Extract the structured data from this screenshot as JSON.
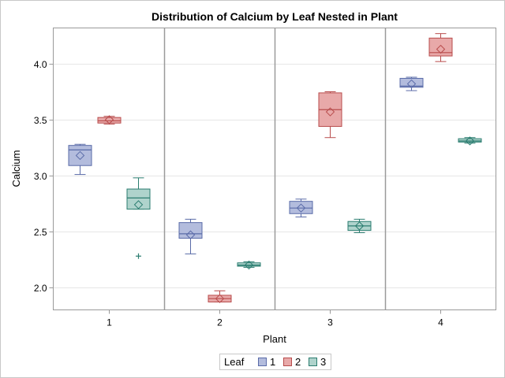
{
  "chart_data": {
    "type": "box",
    "title": "Distribution of Calcium by Leaf Nested in Plant",
    "xlabel": "Plant",
    "ylabel": "Calcium",
    "ylim": [
      1.8,
      4.32
    ],
    "yticks": [
      "2.0",
      "2.5",
      "3.0",
      "3.5",
      "4.0"
    ],
    "ytick_values": [
      2.0,
      2.5,
      3.0,
      3.5,
      4.0
    ],
    "categories": [
      "1",
      "2",
      "3",
      "4"
    ],
    "grid": true,
    "legend": {
      "title": "Leaf",
      "placement": "bottom-center",
      "entries": [
        "1",
        "2",
        "3"
      ]
    },
    "series": [
      {
        "name": "1",
        "fill": "#B3BCDD",
        "stroke": "#5A6BA8",
        "boxes": [
          {
            "plant": "1",
            "whisker_low": 3.01,
            "q1": 3.09,
            "median": 3.23,
            "q3": 3.27,
            "whisker_high": 3.28,
            "mean": 3.18,
            "outliers": []
          },
          {
            "plant": "2",
            "whisker_low": 2.3,
            "q1": 2.44,
            "median": 2.48,
            "q3": 2.58,
            "whisker_high": 2.61,
            "mean": 2.47,
            "outliers": []
          },
          {
            "plant": "3",
            "whisker_low": 2.63,
            "q1": 2.66,
            "median": 2.71,
            "q3": 2.77,
            "whisker_high": 2.79,
            "mean": 2.71,
            "outliers": []
          },
          {
            "plant": "4",
            "whisker_low": 3.76,
            "q1": 3.79,
            "median": 3.8,
            "q3": 3.87,
            "whisker_high": 3.88,
            "mean": 3.82,
            "outliers": []
          }
        ]
      },
      {
        "name": "2",
        "fill": "#E8A9A9",
        "stroke": "#B84C4C",
        "boxes": [
          {
            "plant": "1",
            "whisker_low": 3.46,
            "q1": 3.47,
            "median": 3.49,
            "q3": 3.52,
            "whisker_high": 3.53,
            "mean": 3.5,
            "outliers": []
          },
          {
            "plant": "2",
            "whisker_low": 1.87,
            "q1": 1.87,
            "median": 1.9,
            "q3": 1.93,
            "whisker_high": 1.97,
            "mean": 1.9,
            "outliers": []
          },
          {
            "plant": "3",
            "whisker_low": 3.34,
            "q1": 3.44,
            "median": 3.59,
            "q3": 3.74,
            "whisker_high": 3.75,
            "mean": 3.57,
            "outliers": []
          },
          {
            "plant": "4",
            "whisker_low": 4.02,
            "q1": 4.07,
            "median": 4.1,
            "q3": 4.23,
            "whisker_high": 4.27,
            "mean": 4.13,
            "outliers": []
          }
        ]
      },
      {
        "name": "3",
        "fill": "#AFD3CC",
        "stroke": "#2B7D70",
        "boxes": [
          {
            "plant": "1",
            "whisker_low": 2.7,
            "q1": 2.7,
            "median": 2.8,
            "q3": 2.88,
            "whisker_high": 2.98,
            "mean": 2.74,
            "outliers": [
              2.28
            ]
          },
          {
            "plant": "2",
            "whisker_low": 2.18,
            "q1": 2.19,
            "median": 2.2,
            "q3": 2.22,
            "whisker_high": 2.23,
            "mean": 2.2,
            "outliers": []
          },
          {
            "plant": "3",
            "whisker_low": 2.49,
            "q1": 2.51,
            "median": 2.55,
            "q3": 2.59,
            "whisker_high": 2.61,
            "mean": 2.55,
            "outliers": []
          },
          {
            "plant": "4",
            "whisker_low": 3.29,
            "q1": 3.3,
            "median": 3.31,
            "q3": 3.33,
            "whisker_high": 3.34,
            "mean": 3.31,
            "outliers": []
          }
        ]
      }
    ]
  }
}
